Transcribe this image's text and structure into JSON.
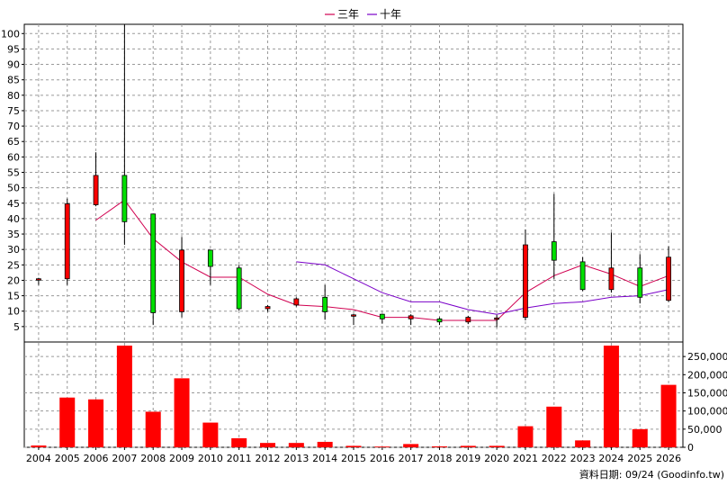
{
  "chart_data": {
    "type": "candlestick",
    "legend": {
      "position": "top-center",
      "items": [
        {
          "label": "三年",
          "color": "#d00050"
        },
        {
          "label": "十年",
          "color": "#7a00c8"
        }
      ]
    },
    "categories": [
      "2004",
      "2005",
      "2006",
      "2007",
      "2008",
      "2009",
      "2010",
      "2011",
      "2012",
      "2013",
      "2014",
      "2015",
      "2016",
      "2017",
      "2018",
      "2019",
      "2020",
      "2021",
      "2022",
      "2023",
      "2024",
      "2025",
      "2026"
    ],
    "price_axis": {
      "ylim": [
        0,
        103
      ],
      "ticks": [
        5,
        10,
        15,
        20,
        25,
        30,
        35,
        40,
        45,
        50,
        55,
        60,
        65,
        70,
        75,
        80,
        85,
        90,
        95,
        100
      ],
      "tick_labels": [
        "5",
        "10",
        "15",
        "20",
        "25",
        "30",
        "35",
        "40",
        "45",
        "50",
        "55",
        "60",
        "65",
        "70",
        "75",
        "80",
        "85",
        "90",
        "95",
        "100"
      ]
    },
    "volume_axis": {
      "ylim": [
        0,
        290000
      ],
      "ticks": [
        0,
        50000,
        100000,
        150000,
        200000,
        250000
      ],
      "tick_labels": [
        "0",
        "50,000",
        "100,000",
        "150,000",
        "200,000",
        "250,000"
      ]
    },
    "candles": [
      {
        "open": 20.5,
        "high": 20.8,
        "low": 18.5,
        "close": 20.5
      },
      {
        "open": 20.5,
        "high": 46.5,
        "low": 18.5,
        "close": 44.8
      },
      {
        "open": 44.5,
        "high": 61.5,
        "low": 44.0,
        "close": 54.0
      },
      {
        "open": 54.0,
        "high": 103.0,
        "low": 31.5,
        "close": 39.0
      },
      {
        "open": 41.5,
        "high": 41.5,
        "low": 5.5,
        "close": 9.5
      },
      {
        "open": 9.8,
        "high": 34.0,
        "low": 8.0,
        "close": 29.8
      },
      {
        "open": 29.8,
        "high": 29.8,
        "low": 18.5,
        "close": 24.5
      },
      {
        "open": 24.0,
        "high": 25.0,
        "low": 10.2,
        "close": 10.8
      },
      {
        "open": 10.8,
        "high": 12.0,
        "low": 9.8,
        "close": 11.5
      },
      {
        "open": 12.0,
        "high": 14.5,
        "low": 11.5,
        "close": 14.0
      },
      {
        "open": 14.5,
        "high": 18.5,
        "low": 7.2,
        "close": 9.8
      },
      {
        "open": 8.8,
        "high": 9.2,
        "low": 5.5,
        "close": 8.8
      },
      {
        "open": 9.0,
        "high": 9.2,
        "low": 6.0,
        "close": 7.5
      },
      {
        "open": 7.5,
        "high": 9.0,
        "low": 5.5,
        "close": 8.5
      },
      {
        "open": 7.5,
        "high": 8.0,
        "low": 5.5,
        "close": 6.5
      },
      {
        "open": 6.5,
        "high": 8.5,
        "low": 5.8,
        "close": 8.0
      },
      {
        "open": 7.5,
        "high": 8.8,
        "low": 4.8,
        "close": 7.8
      },
      {
        "open": 8.0,
        "high": 36.5,
        "low": 7.0,
        "close": 31.5
      },
      {
        "open": 32.5,
        "high": 48.0,
        "low": 20.5,
        "close": 26.5
      },
      {
        "open": 26.0,
        "high": 27.5,
        "low": 16.5,
        "close": 17.0
      },
      {
        "open": 17.0,
        "high": 35.5,
        "low": 16.0,
        "close": 24.0
      },
      {
        "open": 24.0,
        "high": 28.5,
        "low": 12.5,
        "close": 14.5
      },
      {
        "open": 13.5,
        "high": 31.0,
        "low": 13.0,
        "close": 27.5
      }
    ],
    "series": [
      {
        "label_ref": 0,
        "values": [
          null,
          null,
          39.5,
          46.0,
          33.5,
          26.0,
          21.0,
          21.0,
          15.5,
          12.0,
          11.5,
          10.5,
          8.0,
          8.0,
          7.0,
          7.0,
          7.0,
          16.0,
          21.5,
          25.0,
          22.0,
          18.0,
          21.5
        ]
      },
      {
        "label_ref": 1,
        "values": [
          null,
          null,
          null,
          null,
          null,
          null,
          null,
          null,
          null,
          26.0,
          25.0,
          20.5,
          16.0,
          13.0,
          13.0,
          10.5,
          9.0,
          11.0,
          12.5,
          13.0,
          14.5,
          15.0,
          17.0
        ]
      }
    ],
    "volume": {
      "color": "#ff0000",
      "values": [
        5000,
        137000,
        132000,
        280000,
        98000,
        190000,
        68000,
        25000,
        12000,
        12000,
        15000,
        4000,
        2000,
        9000,
        2500,
        4000,
        4000,
        58000,
        112000,
        19000,
        280000,
        50000,
        172000
      ]
    },
    "grid": true
  },
  "footer": {
    "source_note": "資料日期: 09/24  (Goodinfo.tw)"
  }
}
